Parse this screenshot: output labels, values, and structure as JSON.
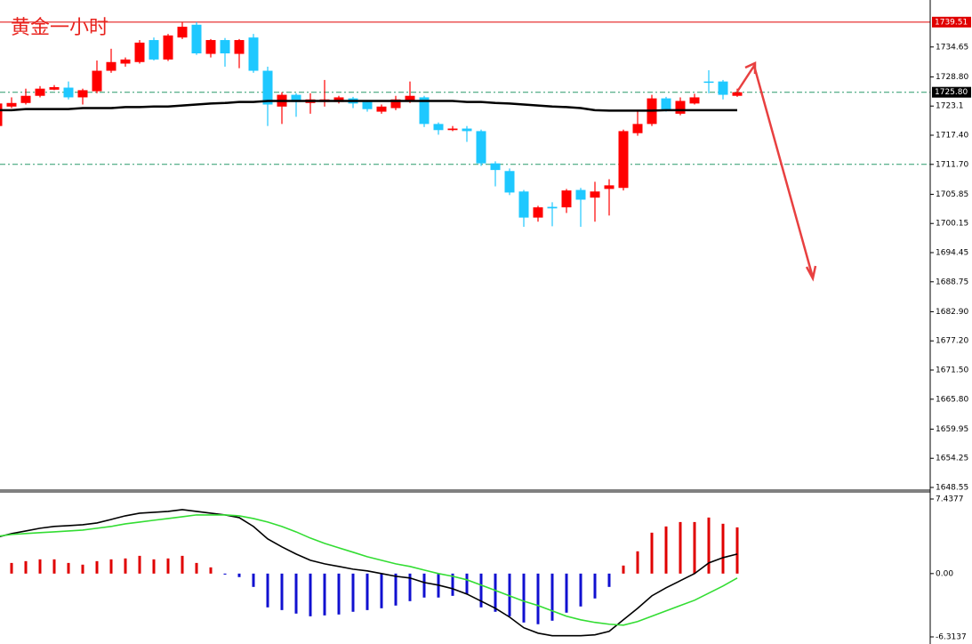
{
  "chart_data": [
    {
      "type": "candlestick",
      "title": "黄金一小时",
      "up_color": "#ff0000",
      "down_color": "#1ec8ff",
      "ylim": [
        1648.03,
        1743.83
      ],
      "yticks": [
        1734.65,
        {
          "value": 1728.8,
          "label": "1728.80"
        },
        1723.1,
        {
          "value": 1717.4,
          "label": "1717.40"
        },
        {
          "value": 1711.7,
          "label": "1711.70"
        },
        1705.85,
        1700.15,
        1694.45,
        1688.75,
        {
          "value": 1682.9,
          "label": "1682.90"
        },
        {
          "value": 1677.2,
          "label": "1677.20"
        },
        {
          "value": 1671.5,
          "label": "1671.50"
        },
        {
          "value": 1665.8,
          "label": "1665.80"
        },
        1659.95,
        1654.25,
        1648.55
      ],
      "hlines": [
        {
          "value": 1739.51,
          "color": "#e00000",
          "style": "solid"
        },
        {
          "value": 1725.8,
          "color": "#2a9a6a",
          "style": "dashdot"
        },
        {
          "value": 1711.7,
          "color": "#2a9a6a",
          "style": "dashdot"
        }
      ],
      "price_markers": [
        {
          "value": 1739.51,
          "label": "1739.51",
          "color": "#e00000"
        },
        {
          "value": 1725.8,
          "label": "1725.80",
          "color": "#000000"
        }
      ],
      "open": [
        1719.2,
        1723.0,
        1723.7,
        1725.1,
        1726.3,
        1726.7,
        1724.8,
        1726.0,
        1730.0,
        1731.4,
        1731.7,
        1736.0,
        1732.2,
        1736.5,
        1739.0,
        1733.3,
        1736.0,
        1733.3,
        1736.5,
        1730.0,
        1723.0,
        1725.3,
        1723.7,
        1723.9,
        1723.9,
        1724.6,
        1723.9,
        1722.0,
        1722.7,
        1724.2,
        1724.8,
        1719.6,
        1718.4,
        1718.7,
        1718.2,
        1711.9,
        1710.4,
        1706.4,
        1701.3,
        1703.4,
        1703.3,
        1706.7,
        1705.2,
        1706.9,
        1707.1,
        1717.8,
        1719.6,
        1724.6,
        1721.6,
        1723.6,
        1727.9,
        1727.9,
        1725.1
      ],
      "high": [
        1723.9,
        1724.8,
        1726.5,
        1727.0,
        1727.2,
        1727.9,
        1726.5,
        1732.0,
        1734.3,
        1732.6,
        1736.0,
        1736.5,
        1737.2,
        1739.5,
        1739.5,
        1736.2,
        1736.4,
        1736.2,
        1737.2,
        1730.8,
        1725.8,
        1725.6,
        1725.6,
        1728.2,
        1725.1,
        1724.9,
        1724.2,
        1723.4,
        1725.1,
        1727.9,
        1725.1,
        1719.9,
        1719.2,
        1719.2,
        1718.5,
        1712.3,
        1710.9,
        1706.7,
        1703.6,
        1704.3,
        1706.9,
        1707.1,
        1708.3,
        1708.8,
        1718.5,
        1722.2,
        1725.3,
        1724.9,
        1724.8,
        1725.5,
        1730.1,
        1728.2,
        1726.5
      ],
      "low": [
        1718.7,
        1722.7,
        1723.4,
        1724.8,
        1726.2,
        1724.4,
        1723.4,
        1725.6,
        1729.6,
        1730.8,
        1731.4,
        1732.0,
        1731.9,
        1736.2,
        1733.1,
        1732.6,
        1730.8,
        1730.5,
        1729.6,
        1719.2,
        1719.6,
        1721.0,
        1721.6,
        1723.0,
        1723.6,
        1722.7,
        1722.0,
        1721.6,
        1722.3,
        1723.7,
        1719.0,
        1717.5,
        1718.2,
        1716.1,
        1711.4,
        1707.4,
        1705.7,
        1699.5,
        1700.5,
        1699.6,
        1702.2,
        1699.5,
        1700.5,
        1701.7,
        1706.6,
        1717.3,
        1719.2,
        1722.0,
        1721.3,
        1723.4,
        1725.6,
        1724.4,
        1724.9
      ],
      "close": [
        1723.6,
        1723.7,
        1725.1,
        1726.5,
        1726.8,
        1724.8,
        1726.2,
        1730.0,
        1731.7,
        1732.2,
        1735.5,
        1732.2,
        1736.9,
        1738.6,
        1733.4,
        1736.0,
        1733.4,
        1736.0,
        1730.0,
        1723.4,
        1725.3,
        1723.9,
        1724.4,
        1724.4,
        1724.8,
        1723.6,
        1722.5,
        1723.0,
        1724.4,
        1725.1,
        1719.6,
        1718.4,
        1718.7,
        1718.2,
        1711.9,
        1710.6,
        1706.2,
        1701.3,
        1703.3,
        1703.1,
        1706.6,
        1704.8,
        1706.4,
        1707.6,
        1718.2,
        1719.6,
        1724.6,
        1722.3,
        1724.1,
        1724.8,
        1727.7,
        1725.3,
        1725.8
      ],
      "ma": {
        "color": "#000000",
        "values": [
          1722.3,
          1722.3,
          1722.5,
          1722.5,
          1722.5,
          1722.5,
          1722.7,
          1722.7,
          1722.7,
          1722.9,
          1722.9,
          1723.0,
          1723.0,
          1723.2,
          1723.4,
          1723.6,
          1723.7,
          1723.9,
          1723.9,
          1724.1,
          1724.1,
          1724.1,
          1724.1,
          1724.1,
          1724.1,
          1724.1,
          1724.1,
          1724.1,
          1724.1,
          1724.1,
          1724.1,
          1724.1,
          1724.1,
          1723.9,
          1723.9,
          1723.7,
          1723.6,
          1723.4,
          1723.2,
          1723.0,
          1722.9,
          1722.7,
          1722.3,
          1722.2,
          1722.2,
          1722.2,
          1722.2,
          1722.3,
          1722.3,
          1722.3,
          1722.3,
          1722.3,
          1722.3
        ]
      }
    },
    {
      "type": "macd",
      "ylim": [
        -7.023,
        8.147
      ],
      "yticks": [
        7.4377,
        {
          "value": 0,
          "label": "0.00"
        },
        -6.3137
      ],
      "pos_color": "#e00000",
      "neg_color": "#1010d0",
      "histogram": [
        null,
        1.06,
        1.24,
        1.42,
        1.42,
        1.06,
        0.89,
        1.24,
        1.42,
        1.51,
        1.77,
        1.42,
        1.51,
        1.77,
        1.06,
        0.62,
        -0.1,
        -0.35,
        -1.33,
        -3.37,
        -3.64,
        -3.99,
        -4.26,
        -4.17,
        -4.08,
        -3.81,
        -3.64,
        -3.46,
        -3.19,
        -2.75,
        -2.39,
        -2.39,
        -2.22,
        -2.04,
        -3.37,
        -3.81,
        -4.26,
        -4.88,
        -5.05,
        -4.7,
        -3.9,
        -3.28,
        -2.48,
        -1.33,
        0.8,
        2.22,
        4.08,
        4.7,
        5.14,
        5.14,
        5.59,
        4.97,
        4.61
      ],
      "series": [
        {
          "color": "#000000",
          "values": [
            3.63,
            3.99,
            4.25,
            4.52,
            4.7,
            4.78,
            4.87,
            5.05,
            5.4,
            5.76,
            6.02,
            6.11,
            6.2,
            6.38,
            6.2,
            6.02,
            5.85,
            5.58,
            4.7,
            3.46,
            2.66,
            1.95,
            1.33,
            0.97,
            0.71,
            0.44,
            0.27,
            0,
            -0.27,
            -0.44,
            -0.89,
            -1.15,
            -1.51,
            -2.04,
            -2.75,
            -3.46,
            -4.34,
            -5.4,
            -5.94,
            -6.2,
            -6.2,
            -6.2,
            -6.11,
            -5.76,
            -4.61,
            -3.46,
            -2.22,
            -1.42,
            -0.71,
            0,
            1.06,
            1.59,
            1.95
          ]
        },
        {
          "color": "#33dd33",
          "values": [
            3.72,
            3.9,
            3.99,
            4.08,
            4.16,
            4.25,
            4.34,
            4.52,
            4.7,
            4.96,
            5.14,
            5.32,
            5.49,
            5.67,
            5.85,
            5.85,
            5.85,
            5.76,
            5.49,
            5.14,
            4.7,
            4.16,
            3.54,
            3.01,
            2.57,
            2.13,
            1.68,
            1.33,
            0.97,
            0.71,
            0.35,
            0,
            -0.27,
            -0.62,
            -1.15,
            -1.68,
            -2.22,
            -2.75,
            -3.19,
            -3.72,
            -4.25,
            -4.61,
            -4.87,
            -5.05,
            -5.14,
            -4.78,
            -4.25,
            -3.72,
            -3.19,
            -2.66,
            -1.95,
            -1.24,
            -0.44
          ]
        }
      ]
    }
  ]
}
